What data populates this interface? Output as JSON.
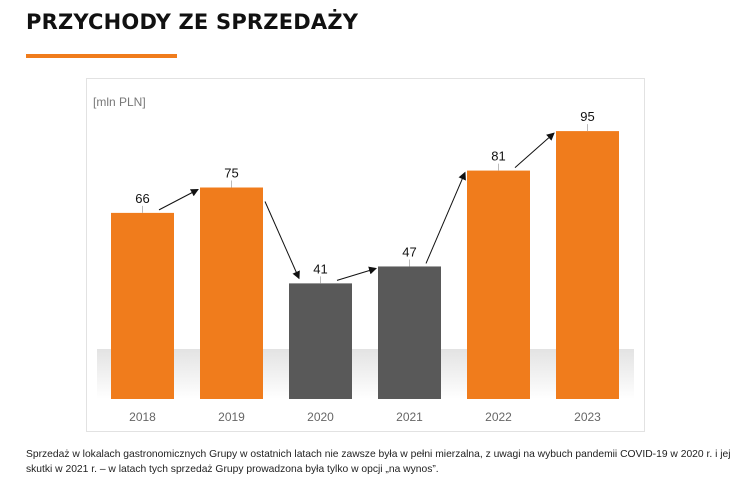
{
  "title": "PRZYCHODY ZE SPRZEDAŻY",
  "colors": {
    "accent": "#f07c1c",
    "gray_bar": "#595959"
  },
  "chart_data": {
    "type": "bar",
    "unit_label": "[mln PLN]",
    "categories": [
      "2018",
      "2019",
      "2020",
      "2021",
      "2022",
      "2023"
    ],
    "values": [
      66,
      75,
      41,
      47,
      81,
      95
    ],
    "bar_colors": [
      "#f07c1c",
      "#f07c1c",
      "#595959",
      "#595959",
      "#f07c1c",
      "#f07c1c"
    ],
    "ylim": [
      0,
      100
    ],
    "grid": false,
    "legend": "none",
    "annotations": "arrows connecting consecutive bars"
  },
  "footnote": "Sprzedaż w lokalach gastronomicznych Grupy w ostatnich latach nie zawsze była w pełni mierzalna, z uwagi na wybuch pandemii COVID-19 w 2020 r. i jej skutki w 2021 r. – w latach tych sprzedaż Grupy prowadzona była tylko w opcji „na wynos”."
}
